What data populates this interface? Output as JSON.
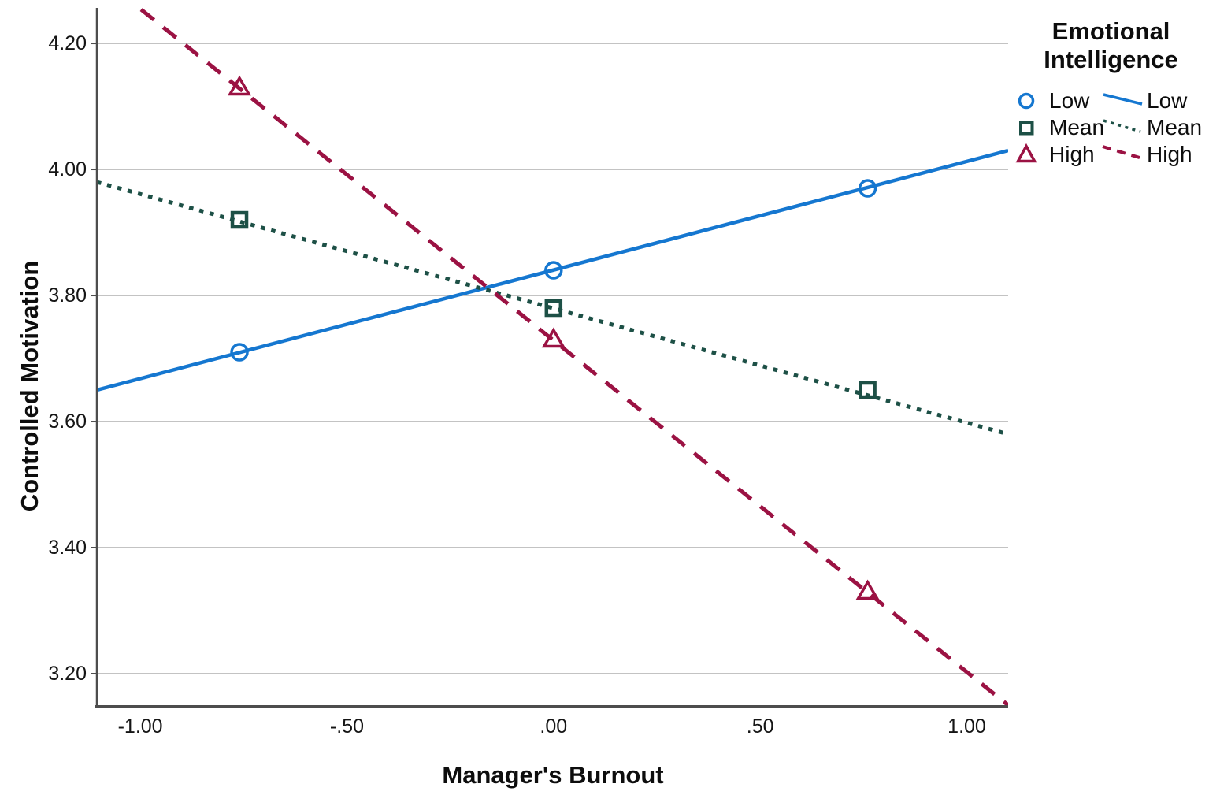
{
  "figure": {
    "background": "#ffffff",
    "text_color": "#0d0d0d",
    "grid_color": "#c3c3c3",
    "axis_color": "#4d4d4d"
  },
  "chart_data": {
    "type": "line",
    "title": "",
    "xlabel": "Manager's Burnout",
    "ylabel": "Controlled Motivation",
    "xlim": [
      -1.105,
      1.1
    ],
    "ylim": [
      3.1475,
      4.2563
    ],
    "grid": "horizontal-gridlines-only",
    "legend_position": "top-right-outside",
    "x_ticks": [
      {
        "value": -1.0,
        "label": "-1.00"
      },
      {
        "value": -0.5,
        "label": "-.50"
      },
      {
        "value": 0.0,
        "label": ".00"
      },
      {
        "value": 0.5,
        "label": ".50"
      },
      {
        "value": 1.0,
        "label": "1.00"
      }
    ],
    "y_ticks": [
      {
        "value": 3.2,
        "label": "3.20"
      },
      {
        "value": 3.4,
        "label": "3.40"
      },
      {
        "value": 3.6,
        "label": "3.60"
      },
      {
        "value": 3.8,
        "label": "3.80"
      },
      {
        "value": 4.0,
        "label": "4.00"
      },
      {
        "value": 4.2,
        "label": "4.20"
      }
    ],
    "series": [
      {
        "name": "Low",
        "color": "#1577d0",
        "line_style": "solid",
        "marker": "circle",
        "points": [
          {
            "x": -0.76,
            "y": 3.71
          },
          {
            "x": 0.0,
            "y": 3.84
          },
          {
            "x": 0.76,
            "y": 3.97
          }
        ],
        "trend_line": {
          "x1": -1.105,
          "y1": 3.65,
          "x2": 1.1,
          "y2": 4.03
        }
      },
      {
        "name": "Mean",
        "color": "#1d5046",
        "line_style": "dotted",
        "marker": "square",
        "points": [
          {
            "x": -0.76,
            "y": 3.92
          },
          {
            "x": 0.0,
            "y": 3.78
          },
          {
            "x": 0.76,
            "y": 3.65
          }
        ],
        "trend_line": {
          "x1": -1.105,
          "y1": 3.98,
          "x2": 1.1,
          "y2": 3.58
        }
      },
      {
        "name": "High",
        "color": "#9b1243",
        "line_style": "dashed",
        "marker": "triangle",
        "points": [
          {
            "x": -0.76,
            "y": 4.13
          },
          {
            "x": 0.0,
            "y": 3.73
          },
          {
            "x": 0.76,
            "y": 3.33
          }
        ],
        "trend_line": {
          "x1": -1.105,
          "y1": 4.31,
          "x2": 1.1,
          "y2": 3.15
        }
      }
    ],
    "legend": {
      "title": [
        "Emotional",
        "Intelligence"
      ],
      "items": [
        {
          "marker_label": "Low",
          "line_label": "Low"
        },
        {
          "marker_label": "Mean",
          "line_label": "Mean"
        },
        {
          "marker_label": "High",
          "line_label": "High"
        }
      ]
    }
  }
}
